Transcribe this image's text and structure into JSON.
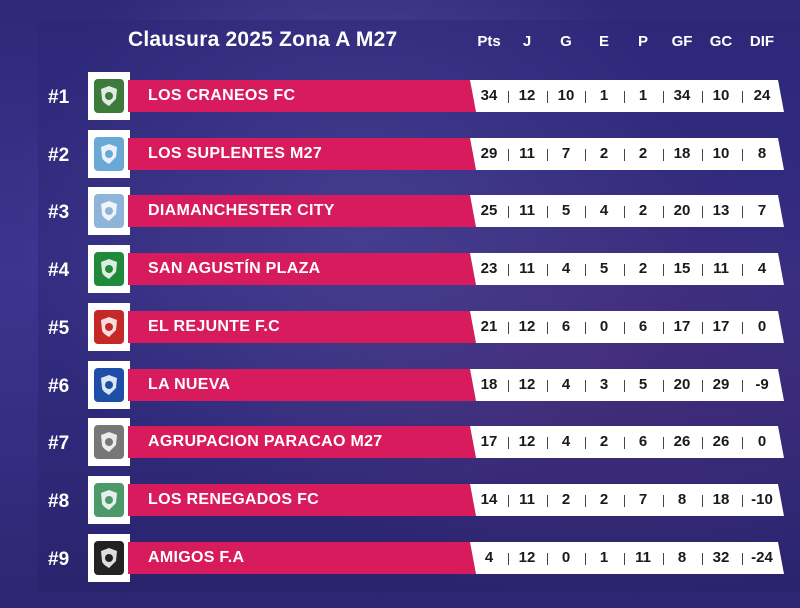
{
  "title": "Clausura 2025 Zona A M27",
  "headers": [
    "Pts",
    "J",
    "G",
    "E",
    "P",
    "GF",
    "GC",
    "DIF"
  ],
  "colors": {
    "accent": "#d81b5c",
    "background": "#3a3486",
    "stats_bg": "#ffffff"
  },
  "teams": [
    {
      "rank": "#1",
      "name": "LOS CRANEOS FC",
      "logo": "skull-crest-icon",
      "logo_color": "#3e7a3a",
      "stats": [
        "34",
        "12",
        "10",
        "1",
        "1",
        "34",
        "10",
        "24"
      ]
    },
    {
      "rank": "#2",
      "name": "LOS SUPLENTES M27",
      "logo": "striped-shield-icon",
      "logo_color": "#6aa9d6",
      "stats": [
        "29",
        "11",
        "7",
        "2",
        "2",
        "18",
        "10",
        "8"
      ]
    },
    {
      "rank": "#3",
      "name": "DIAMANCHESTER CITY",
      "logo": "round-crest-icon",
      "logo_color": "#8fb4d9",
      "stats": [
        "25",
        "11",
        "5",
        "4",
        "2",
        "20",
        "13",
        "7"
      ]
    },
    {
      "rank": "#4",
      "name": "SAN AGUSTÍN PLAZA",
      "logo": "green-stripes-icon",
      "logo_color": "#1f8a3a",
      "stats": [
        "23",
        "11",
        "4",
        "5",
        "2",
        "15",
        "11",
        "4"
      ]
    },
    {
      "rank": "#5",
      "name": "EL REJUNTE F.C",
      "logo": "ball-shield-icon",
      "logo_color": "#c62828",
      "stats": [
        "21",
        "12",
        "6",
        "0",
        "6",
        "17",
        "17",
        "0"
      ]
    },
    {
      "rank": "#6",
      "name": "LA NUEVA",
      "logo": "blue-shield-icon",
      "logo_color": "#1e4fa8",
      "stats": [
        "18",
        "12",
        "4",
        "3",
        "5",
        "20",
        "29",
        "-9"
      ]
    },
    {
      "rank": "#7",
      "name": "AGRUPACION PARACAO M27",
      "logo": "winged-ball-icon",
      "logo_color": "#777777",
      "stats": [
        "17",
        "12",
        "4",
        "2",
        "6",
        "26",
        "26",
        "0"
      ]
    },
    {
      "rank": "#8",
      "name": "LOS RENEGADOS FC",
      "logo": "cross-shield-icon",
      "logo_color": "#4c9a6a",
      "stats": [
        "14",
        "11",
        "2",
        "2",
        "7",
        "8",
        "18",
        "-10"
      ]
    },
    {
      "rank": "#9",
      "name": "AMIGOS F.A",
      "logo": "red-ball-icon",
      "logo_color": "#222222",
      "stats": [
        "4",
        "12",
        "0",
        "1",
        "11",
        "8",
        "32",
        "-24"
      ]
    }
  ]
}
